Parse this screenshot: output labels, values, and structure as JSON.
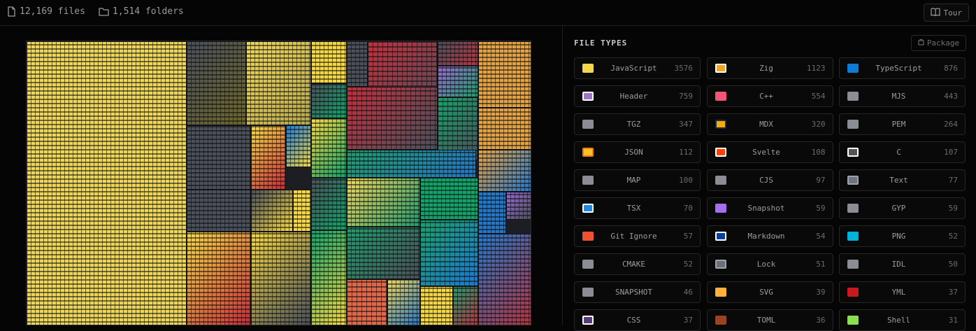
{
  "header": {
    "files": "12,169 files",
    "folders": "1,514 folders",
    "tour_label": "Tour"
  },
  "panel": {
    "title": "FILE TYPES",
    "package_label": "Package"
  },
  "file_types": [
    {
      "name": "JavaScript",
      "count": "3576",
      "color": "#f2d74e",
      "border": "#f2d74e"
    },
    {
      "name": "Zig",
      "count": "1123",
      "color": "#f7a41d",
      "border": "#ffffff"
    },
    {
      "name": "TypeScript",
      "count": "876",
      "color": "#0f7bd6",
      "border": "#0f7bd6"
    },
    {
      "name": "Header",
      "count": "759",
      "color": "#a074c4",
      "border": "#ffffff"
    },
    {
      "name": "C++",
      "count": "554",
      "color": "#f3547a",
      "border": "#f3547a"
    },
    {
      "name": "MJS",
      "count": "443",
      "color": "#8a8e94",
      "border": "#8a8e94"
    },
    {
      "name": "TGZ",
      "count": "347",
      "color": "#8a8e94",
      "border": "#8a8e94"
    },
    {
      "name": "MDX",
      "count": "320",
      "color": "#f9ac00",
      "border": "#1b2b50"
    },
    {
      "name": "PEM",
      "count": "264",
      "color": "#8a8e94",
      "border": "#8a8e94"
    },
    {
      "name": "JSON",
      "count": "112",
      "color": "#fbc02d",
      "border": "#f57c00"
    },
    {
      "name": "Svelte",
      "count": "108",
      "color": "#ff3e00",
      "border": "#ffffff"
    },
    {
      "name": "C",
      "count": "107",
      "color": "#555555",
      "border": "#ffffff"
    },
    {
      "name": "MAP",
      "count": "100",
      "color": "#8a8e94",
      "border": "#8a8e94"
    },
    {
      "name": "CJS",
      "count": "97",
      "color": "#8a8e94",
      "border": "#8a8e94"
    },
    {
      "name": "Text",
      "count": "77",
      "color": "#6f7580",
      "border": "#9ea3aa"
    },
    {
      "name": "TSX",
      "count": "70",
      "color": "#1e88e5",
      "border": "#ffffff"
    },
    {
      "name": "Snapshot",
      "count": "59",
      "color": "#a56ef0",
      "border": "#a56ef0"
    },
    {
      "name": "GYP",
      "count": "59",
      "color": "#8a8e94",
      "border": "#8a8e94"
    },
    {
      "name": "Git Ignore",
      "count": "57",
      "color": "#f05133",
      "border": "#f05133"
    },
    {
      "name": "Markdown",
      "count": "54",
      "color": "#083fa1",
      "border": "#ffffff"
    },
    {
      "name": "PNG",
      "count": "52",
      "color": "#00b4d8",
      "border": "#00b4d8"
    },
    {
      "name": "CMAKE",
      "count": "52",
      "color": "#8a8e94",
      "border": "#8a8e94"
    },
    {
      "name": "Lock",
      "count": "51",
      "color": "#6b6f78",
      "border": "#9ea3aa"
    },
    {
      "name": "IDL",
      "count": "50",
      "color": "#8a8e94",
      "border": "#8a8e94"
    },
    {
      "name": "SNAPSHOT",
      "count": "46",
      "color": "#8a8e94",
      "border": "#8a8e94"
    },
    {
      "name": "SVG",
      "count": "39",
      "color": "#ffb13b",
      "border": "#ffb13b"
    },
    {
      "name": "YML",
      "count": "37",
      "color": "#cb171e",
      "border": "#cb171e"
    },
    {
      "name": "CSS",
      "count": "37",
      "color": "#563d7c",
      "border": "#ffffff"
    },
    {
      "name": "TOML",
      "count": "36",
      "color": "#9c4221",
      "border": "#9c4221"
    },
    {
      "name": "Shell",
      "count": "31",
      "color": "#89e051",
      "border": "#89e051"
    }
  ]
}
